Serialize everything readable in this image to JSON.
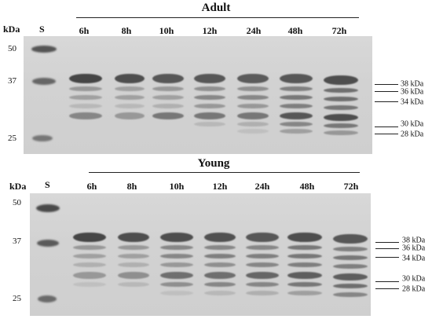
{
  "panels": [
    {
      "title": "Adult",
      "kda_header": "kDa",
      "std_header": "S",
      "lanes": [
        "6h",
        "8h",
        "10h",
        "12h",
        "24h",
        "48h",
        "72h"
      ],
      "markers": [
        "50",
        "37",
        "25"
      ],
      "band_labels": [
        "38 kDa",
        "36 kDa",
        "34 kDa",
        "30 kDa",
        "28 kDa"
      ]
    },
    {
      "title": "Young",
      "kda_header": "kDa",
      "std_header": "S",
      "lanes": [
        "6h",
        "8h",
        "10h",
        "12h",
        "24h",
        "48h",
        "72h"
      ],
      "markers": [
        "50",
        "37",
        "25"
      ],
      "band_labels": [
        "38 kDa",
        "36 kDa",
        "34 kDa",
        "30 kDa",
        "28 kDa"
      ]
    }
  ],
  "colors": {
    "gel_background": "#d3d3d3",
    "band_dark": "#3a3a3a"
  }
}
